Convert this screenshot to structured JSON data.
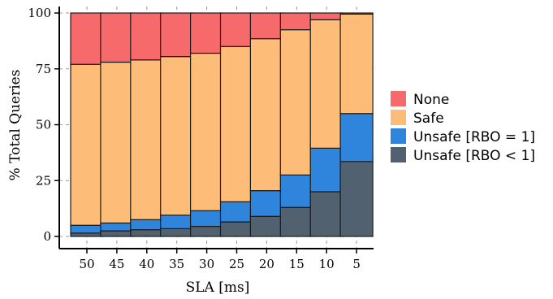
{
  "chart_data": {
    "type": "bar",
    "stacked": true,
    "categories": [
      "50",
      "45",
      "40",
      "35",
      "30",
      "25",
      "20",
      "15",
      "10",
      "5"
    ],
    "series": [
      {
        "name": "Unsafe [RBO < 1]",
        "color": "#526170",
        "values": [
          1.5,
          2.5,
          3.0,
          3.5,
          4.5,
          6.5,
          9.0,
          13.0,
          20.0,
          33.5
        ]
      },
      {
        "name": "Unsafe [RBO = 1]",
        "color": "#2f85dc",
        "values": [
          3.5,
          3.5,
          4.5,
          6.0,
          7.0,
          9.0,
          11.5,
          14.5,
          19.5,
          21.5
        ]
      },
      {
        "name": "Safe",
        "color": "#fdbd79",
        "values": [
          72.0,
          72.0,
          71.5,
          71.0,
          70.5,
          69.5,
          68.0,
          65.0,
          57.5,
          44.5
        ]
      },
      {
        "name": "None",
        "color": "#f66a6c",
        "values": [
          23.0,
          22.0,
          21.0,
          19.5,
          18.0,
          15.0,
          11.5,
          7.5,
          3.0,
          0.5
        ]
      }
    ],
    "legend_order": [
      "None",
      "Safe",
      "Unsafe [RBO = 1]",
      "Unsafe [RBO < 1]"
    ],
    "xlabel": "SLA [ms]",
    "ylabel": "% Total Queries",
    "ylim": [
      0,
      100
    ],
    "yticks": [
      "0",
      "25",
      "50",
      "75",
      "100"
    ],
    "grid": true,
    "legend_position": "right"
  }
}
